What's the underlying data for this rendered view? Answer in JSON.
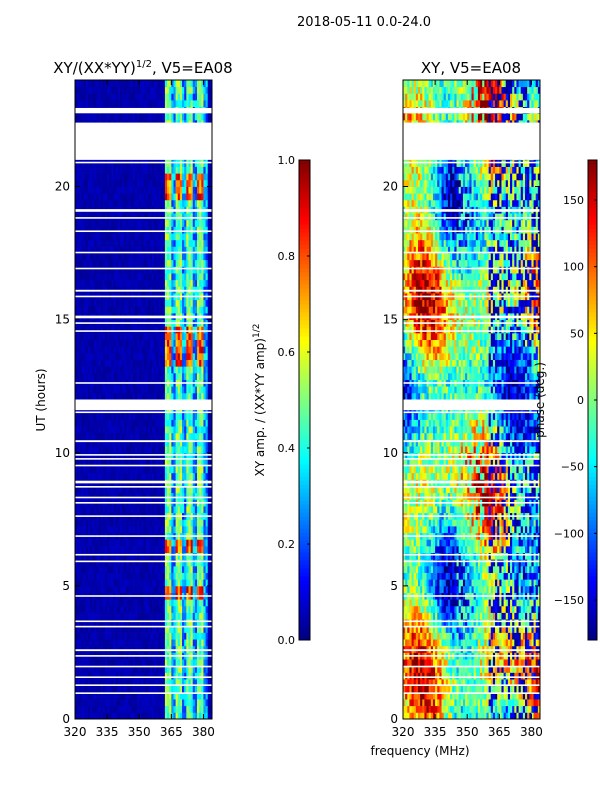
{
  "figure": {
    "suptitle": "2018-05-11 0.0-24.0",
    "common_xlabel": "frequency (MHz)"
  },
  "colors": {
    "jet": [
      "#00007f",
      "#0000ff",
      "#007fff",
      "#00ffff",
      "#7fff7f",
      "#ffff00",
      "#ff7f00",
      "#ff0000",
      "#7f0000"
    ],
    "gap": "#ffffff",
    "frame": "#000000"
  },
  "chart_data": [
    {
      "type": "heatmap",
      "title_main": "XY/(XX*YY)",
      "title_sup": "1/2",
      "title_rest": ", V5=EA08",
      "xlabel": "",
      "ylabel": "UT (hours)",
      "xlim": [
        320,
        384
      ],
      "ylim": [
        0,
        24
      ],
      "xticks": [
        320,
        335,
        350,
        365,
        380
      ],
      "yticks": [
        0,
        5,
        10,
        15,
        20
      ],
      "colorbar": {
        "label_main": "XY amp. / (XX*YY amp)",
        "label_sup": "1/2",
        "range": [
          0.0,
          1.0
        ],
        "ticks": [
          "0.0",
          "0.2",
          "0.4",
          "0.6",
          "0.8",
          "1.0"
        ],
        "tick_values": [
          0.0,
          0.2,
          0.4,
          0.6,
          0.8,
          1.0
        ]
      },
      "active_band_mhz": [
        362,
        382
      ],
      "channel_columns_mhz": [
        [
          362.5,
          364.5
        ],
        [
          367.5,
          369.5
        ],
        [
          372.5,
          374.5
        ],
        [
          377.5,
          379.5
        ]
      ],
      "peak_hours": [
        [
          13.2,
          14.7
        ],
        [
          19.5,
          20.4
        ],
        [
          6.2,
          6.8
        ],
        [
          4.6,
          5.0
        ]
      ]
    },
    {
      "type": "heatmap",
      "title_main": "XY, V5=EA08",
      "xlabel": "frequency (MHz)",
      "ylabel": "",
      "xlim": [
        320,
        384
      ],
      "ylim": [
        0,
        24
      ],
      "xticks": [
        320,
        335,
        350,
        365,
        380
      ],
      "yticks": [
        0,
        5,
        10,
        15,
        20
      ],
      "colorbar": {
        "label": "phase (deg.)",
        "range": [
          -180,
          180
        ],
        "ticks": [
          "150",
          "100",
          "50",
          "0",
          "−50",
          "−100",
          "−150"
        ],
        "tick_values": [
          150,
          100,
          50,
          0,
          -50,
          -100,
          -150
        ]
      }
    }
  ],
  "data_gaps_hours": [
    [
      21.0,
      22.4
    ],
    [
      22.75,
      22.95
    ],
    [
      20.88,
      20.93
    ],
    [
      19.05,
      19.15
    ],
    [
      18.8,
      18.85
    ],
    [
      18.3,
      18.35
    ],
    [
      17.5,
      17.55
    ],
    [
      16.9,
      16.95
    ],
    [
      16.05,
      16.12
    ],
    [
      15.85,
      15.9
    ],
    [
      15.05,
      15.15
    ],
    [
      14.85,
      14.9
    ],
    [
      14.55,
      14.6
    ],
    [
      12.6,
      12.65
    ],
    [
      11.6,
      12.0
    ],
    [
      11.5,
      11.55
    ],
    [
      10.4,
      10.47
    ],
    [
      9.9,
      9.95
    ],
    [
      9.75,
      9.8
    ],
    [
      9.5,
      9.55
    ],
    [
      8.85,
      8.95
    ],
    [
      8.7,
      8.75
    ],
    [
      8.3,
      8.35
    ],
    [
      8.1,
      8.15
    ],
    [
      7.6,
      7.65
    ],
    [
      6.85,
      6.9
    ],
    [
      6.15,
      6.2
    ],
    [
      5.9,
      5.95
    ],
    [
      4.6,
      4.65
    ],
    [
      3.65,
      3.7
    ],
    [
      3.45,
      3.5
    ],
    [
      2.55,
      2.62
    ],
    [
      2.35,
      2.4
    ],
    [
      1.95,
      2.0
    ],
    [
      1.55,
      1.6
    ],
    [
      1.25,
      1.3
    ],
    [
      0.95,
      1.0
    ]
  ]
}
